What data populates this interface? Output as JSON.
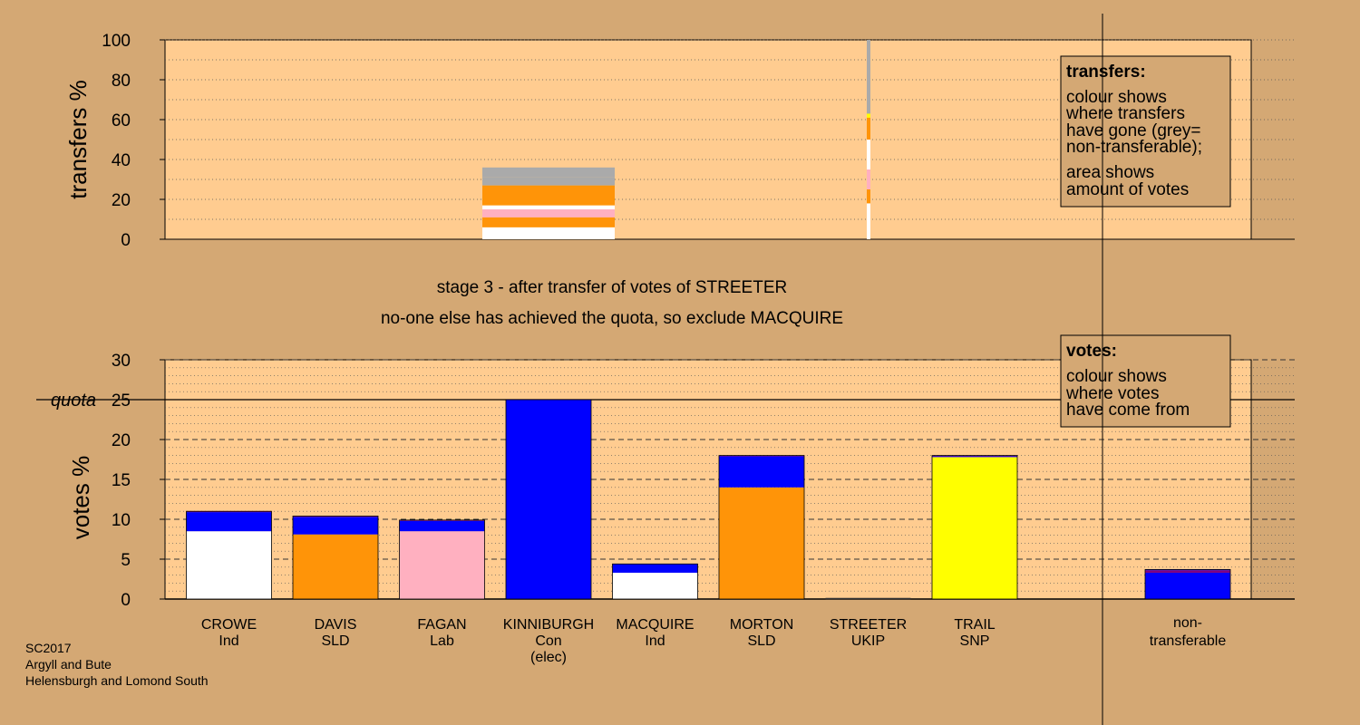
{
  "stage_line1": "stage 3 - after transfer of votes of STREETER",
  "stage_line2": "no-one else has achieved the quota, so exclude MACQUIRE",
  "footer": [
    "SC2017",
    "Argyll and Bute",
    "Helensburgh and Lomond South"
  ],
  "legend_transfers": {
    "title": "transfers:",
    "lines1": [
      "colour shows",
      "where transfers",
      "have gone (grey=",
      "non-transferable);"
    ],
    "lines2": [
      "area shows",
      "amount of votes"
    ]
  },
  "legend_votes": {
    "title": "votes:",
    "lines": [
      "colour shows",
      "where votes",
      "have come from"
    ]
  },
  "colors": {
    "background": "#d4a874",
    "plot": "#ffcc90",
    "Ind": "#ffffff",
    "SLD": "#ff9408",
    "Lab": "#ffb0c0",
    "Con": "#0000ff",
    "SNP": "#ffff00",
    "UKIP": "#800080",
    "nontransferable": "#aaaaaa"
  },
  "chart_data": [
    {
      "type": "bar",
      "name": "transfers",
      "ylabel": "transfers %",
      "ylim": [
        0,
        100
      ],
      "yticks": [
        0,
        20,
        40,
        60,
        80,
        100
      ],
      "grid": true,
      "segments_block": [
        {
          "party": "Ind",
          "from": 0,
          "to": 6
        },
        {
          "party": "SLD",
          "from": 6,
          "to": 11
        },
        {
          "party": "Lab",
          "from": 11,
          "to": 15
        },
        {
          "party": "Ind",
          "from": 15,
          "to": 17
        },
        {
          "party": "SLD",
          "from": 17,
          "to": 27
        },
        {
          "party": "nontransferable",
          "from": 27,
          "to": 31
        },
        {
          "party": "nontransferable",
          "from": 31,
          "to": 36
        }
      ],
      "segments_line": [
        {
          "party": "Ind",
          "from": 0,
          "to": 18
        },
        {
          "party": "SLD",
          "from": 18,
          "to": 25
        },
        {
          "party": "Lab",
          "from": 25,
          "to": 35
        },
        {
          "party": "Ind",
          "from": 35,
          "to": 50
        },
        {
          "party": "SLD",
          "from": 50,
          "to": 61
        },
        {
          "party": "SNP",
          "from": 61,
          "to": 63
        },
        {
          "party": "nontransferable",
          "from": 63,
          "to": 100
        }
      ]
    },
    {
      "type": "bar",
      "name": "votes",
      "ylabel": "votes %",
      "ylim": [
        0,
        30
      ],
      "yticks": [
        0,
        5,
        10,
        15,
        20,
        25,
        30
      ],
      "quota": 25,
      "quota_label": "quota",
      "grid": true,
      "categories": [
        {
          "name": "CROWE",
          "party": "Ind",
          "extra": "",
          "segments": [
            {
              "party": "Ind",
              "value": 8.5
            },
            {
              "party": "Con",
              "value": 2.4
            },
            {
              "party": "UKIP",
              "value": 0.1
            }
          ]
        },
        {
          "name": "DAVIS",
          "party": "SLD",
          "extra": "",
          "segments": [
            {
              "party": "SLD",
              "value": 8.1
            },
            {
              "party": "Con",
              "value": 2.2
            },
            {
              "party": "UKIP",
              "value": 0.1
            }
          ]
        },
        {
          "name": "FAGAN",
          "party": "Lab",
          "extra": "",
          "segments": [
            {
              "party": "Lab",
              "value": 8.5
            },
            {
              "party": "Con",
              "value": 1.3
            },
            {
              "party": "UKIP",
              "value": 0.1
            }
          ]
        },
        {
          "name": "KINNIBURGH",
          "party": "Con",
          "extra": "(elec)",
          "segments": [
            {
              "party": "Con",
              "value": 25.0
            }
          ]
        },
        {
          "name": "MACQUIRE",
          "party": "Ind",
          "extra": "",
          "segments": [
            {
              "party": "Ind",
              "value": 3.3
            },
            {
              "party": "Con",
              "value": 1.1
            }
          ]
        },
        {
          "name": "MORTON",
          "party": "SLD",
          "extra": "",
          "segments": [
            {
              "party": "SLD",
              "value": 14.0
            },
            {
              "party": "Con",
              "value": 3.9
            },
            {
              "party": "UKIP",
              "value": 0.1
            }
          ]
        },
        {
          "name": "STREETER",
          "party": "UKIP",
          "extra": "",
          "segments": []
        },
        {
          "name": "TRAIL",
          "party": "SNP",
          "extra": "",
          "segments": [
            {
              "party": "SNP",
              "value": 17.8
            },
            {
              "party": "Con",
              "value": 0.1
            },
            {
              "party": "UKIP",
              "value": 0.1
            }
          ]
        }
      ],
      "nontransferable": {
        "label1": "non-",
        "label2": "transferable",
        "segments": [
          {
            "party": "Con",
            "value": 3.3
          },
          {
            "party": "UKIP",
            "value": 0.3
          },
          {
            "party": "Con",
            "value": 0.1
          }
        ]
      }
    }
  ]
}
